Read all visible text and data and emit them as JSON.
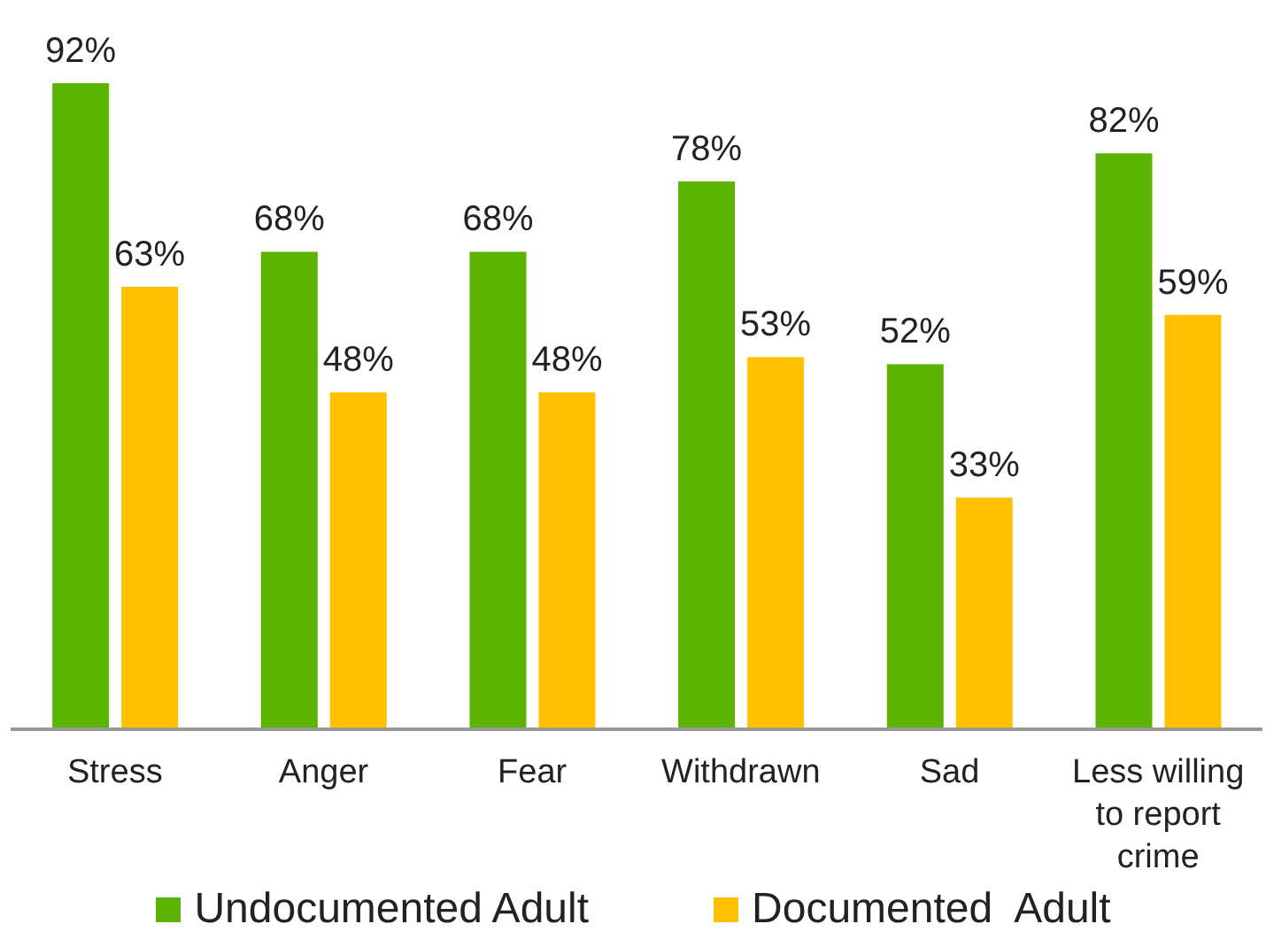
{
  "chart_data": {
    "type": "bar",
    "categories": [
      "Stress",
      "Anger",
      "Fear",
      "Withdrawn",
      "Sad",
      "Less willing to report crime"
    ],
    "series": [
      {
        "name": "Undocumented Adult",
        "color": "#5cb300",
        "values": [
          92,
          68,
          68,
          78,
          52,
          82
        ],
        "value_labels": [
          "92%",
          "68%",
          "68%",
          "78%",
          "52%",
          "82%"
        ]
      },
      {
        "name": "Documented  Adult",
        "color": "#ffc000",
        "values": [
          63,
          48,
          48,
          53,
          33,
          59
        ],
        "value_labels": [
          "63%",
          "48%",
          "48%",
          "53%",
          "33%",
          "59%"
        ]
      }
    ],
    "legend": "bottom"
  }
}
